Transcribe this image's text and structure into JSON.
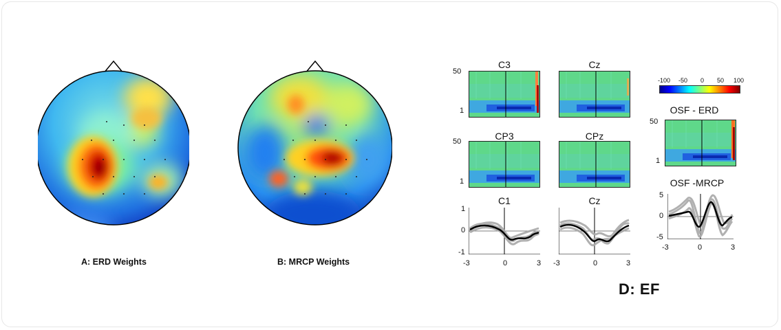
{
  "panels": {
    "a": {
      "label": "A: ERD Weights"
    },
    "b": {
      "label": "B: MRCP Weights"
    },
    "d": {
      "label": "D: EF"
    }
  },
  "spectrograms": {
    "c3": {
      "title": "C3",
      "ymax": "50",
      "ymin": "1"
    },
    "cz": {
      "title": "Cz"
    },
    "cp3": {
      "title": "CP3",
      "ymax": "50",
      "ymin": "1"
    },
    "cpz": {
      "title": "CPz"
    },
    "osf_erd": {
      "title": "OSF - ERD",
      "ymax": "50",
      "ymin": "1"
    }
  },
  "colorbar": {
    "ticks": [
      "-100",
      "-50",
      "0",
      "50",
      "100"
    ]
  },
  "waveforms": {
    "c1": {
      "title": "C1",
      "yticks": [
        "1",
        "0",
        "-1"
      ],
      "xticks": [
        "-3",
        "0",
        "3"
      ]
    },
    "cz": {
      "title": "Cz",
      "xticks": [
        "-3",
        "0",
        "3"
      ]
    },
    "osf_mrcp": {
      "title": "OSF -MRCP",
      "yticks": [
        "5",
        "0",
        "-5"
      ],
      "xticks": [
        "-3",
        "0",
        "3"
      ]
    }
  }
}
